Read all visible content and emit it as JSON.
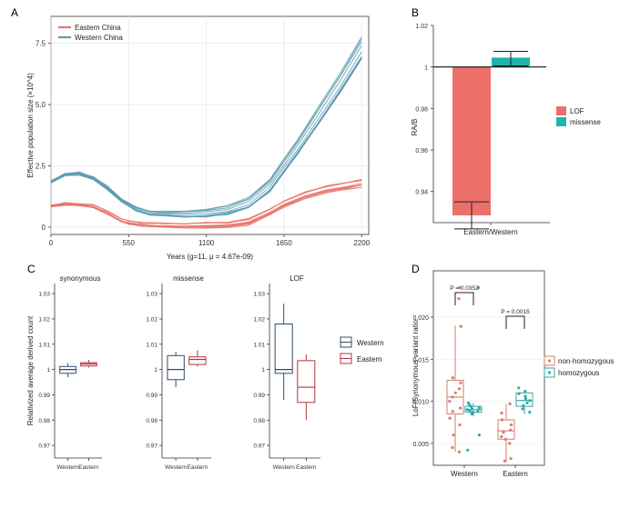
{
  "colors": {
    "eastern": "#e8766b",
    "western": "#5d9bb0",
    "lof": "#ec6f6a",
    "missense": "#1fb3ad",
    "west_box": "#2f4d6b",
    "east_box": "#b5343c",
    "hom": "#33aaa8",
    "nonhom": "#d57d6e"
  },
  "chart_data": [
    {
      "panel": "A",
      "type": "line",
      "title": "",
      "xlabel": "Years (g=11, μ = 4.67e-09)",
      "ylabel": "Effective population size (×10^4)",
      "xlim": [
        0,
        2250
      ],
      "ylim": [
        -0.3,
        8.6
      ],
      "xticks": [
        "0",
        "550",
        "1100",
        "1650",
        "2200"
      ],
      "yticks": [
        "0",
        "2.5",
        "5.0",
        "7.5"
      ],
      "legend": {
        "position": "top-left",
        "entries": [
          "Eastern China",
          "Western China"
        ]
      },
      "grid": true,
      "series": [
        {
          "name": "Eastern China",
          "replicates": 10,
          "x": [
            0,
            100,
            200,
            300,
            400,
            500,
            550,
            650,
            800,
            950,
            1100,
            1250,
            1400,
            1550,
            1650,
            1800,
            1950,
            2100,
            2200
          ],
          "y": [
            0.85,
            0.95,
            0.92,
            0.85,
            0.6,
            0.28,
            0.2,
            0.1,
            0.08,
            0.08,
            0.08,
            0.1,
            0.22,
            0.62,
            0.95,
            1.3,
            1.55,
            1.7,
            1.8
          ]
        },
        {
          "name": "Western China",
          "replicates": 10,
          "x": [
            0,
            100,
            200,
            300,
            400,
            500,
            600,
            700,
            800,
            950,
            1100,
            1250,
            1400,
            1550,
            1650,
            1750,
            1900,
            2050,
            2200
          ],
          "y": [
            1.85,
            2.15,
            2.2,
            2.0,
            1.6,
            1.1,
            0.75,
            0.58,
            0.55,
            0.55,
            0.58,
            0.7,
            1.0,
            1.7,
            2.5,
            3.3,
            4.6,
            5.9,
            7.3
          ]
        }
      ]
    },
    {
      "panel": "B",
      "type": "bar",
      "xlabel": "Eastern/Western",
      "ylabel": "RA/B",
      "ylim": [
        0.925,
        1.02
      ],
      "baseline": 1,
      "yticks": [
        "0.94",
        "0.96",
        "0.98",
        "1",
        "1.02"
      ],
      "legend": {
        "position": "right",
        "entries": [
          "LOF",
          "missense"
        ]
      },
      "bars": [
        {
          "name": "LOF",
          "value": 0.9285,
          "err_low": 0.922,
          "err_high": 0.935
        },
        {
          "name": "missense",
          "value": 1.0045,
          "err_low": 1.0005,
          "err_high": 1.0075
        }
      ]
    },
    {
      "panel": "C",
      "type": "box",
      "ylabel": "Relativized average derived count",
      "ylim": [
        0.965,
        1.034
      ],
      "yticks": [
        "0.97",
        "0.98",
        "0.99",
        "1",
        "1.01",
        "1.02",
        "1.03"
      ],
      "categories": [
        "Western",
        "Eastern"
      ],
      "legend": {
        "position": "right",
        "entries": [
          "Western",
          "Eastern"
        ]
      },
      "facets": [
        {
          "title": "synonymous",
          "Western": {
            "min": 0.997,
            "q1": 0.9985,
            "median": 1.0,
            "q3": 1.0012,
            "max": 1.0025
          },
          "Eastern": {
            "min": 1.0008,
            "q1": 1.0014,
            "median": 1.0022,
            "q3": 1.0027,
            "max": 1.0038
          }
        },
        {
          "title": "missense",
          "Western": {
            "min": 0.993,
            "q1": 0.996,
            "median": 1.0,
            "q3": 1.0055,
            "max": 1.007
          },
          "Eastern": {
            "min": 1.0012,
            "q1": 1.002,
            "median": 1.004,
            "q3": 1.005,
            "max": 1.0075
          }
        },
        {
          "title": "LOF",
          "Western": {
            "min": 0.988,
            "q1": 0.9985,
            "median": 1.0,
            "q3": 1.018,
            "max": 1.026
          },
          "Eastern": {
            "min": 0.98,
            "q1": 0.987,
            "median": 0.993,
            "q3": 1.0035,
            "max": 1.006
          }
        }
      ]
    },
    {
      "panel": "D",
      "type": "box",
      "ylabel": "LoF/Synonymous variant ratio",
      "ylim": [
        0.0024,
        0.0255
      ],
      "yticks": [
        "0.005",
        "0.010",
        "0.015",
        "0.020"
      ],
      "categories": [
        "Western",
        "Eastern"
      ],
      "legend": {
        "position": "right",
        "entries": [
          "non-homozygous",
          "homozygous"
        ]
      },
      "annotations": [
        "P = 0.0352",
        "P = 0.0015"
      ],
      "groups": [
        {
          "category": "Western",
          "non-homozygous": {
            "min": 0.004,
            "q1": 0.0085,
            "median": 0.0105,
            "q3": 0.0125,
            "max": 0.019,
            "points": [
              0.0235,
              0.0222,
              0.0189,
              0.0128,
              0.0122,
              0.0115,
              0.011,
              0.0105,
              0.01,
              0.0092,
              0.0088,
              0.008,
              0.0072,
              0.006,
              0.0045,
              0.004
            ]
          },
          "homozygous": {
            "min": 0.0082,
            "q1": 0.0087,
            "median": 0.009,
            "q3": 0.0094,
            "max": 0.0098,
            "points": [
              0.0235,
              0.0098,
              0.0096,
              0.0094,
              0.0092,
              0.0091,
              0.009,
              0.0089,
              0.0088,
              0.0087,
              0.0085,
              0.006,
              0.0042
            ]
          }
        },
        {
          "category": "Eastern",
          "non-homozygous": {
            "min": 0.0028,
            "q1": 0.0055,
            "median": 0.0065,
            "q3": 0.0078,
            "max": 0.0097,
            "points": [
              0.0097,
              0.0086,
              0.0078,
              0.0072,
              0.0066,
              0.0063,
              0.0058,
              0.0055,
              0.005,
              0.0032,
              0.0029
            ]
          },
          "homozygous": {
            "min": 0.0085,
            "q1": 0.0094,
            "median": 0.0101,
            "q3": 0.011,
            "max": 0.0113,
            "points": [
              0.0116,
              0.0112,
              0.0109,
              0.0106,
              0.0103,
              0.0101,
              0.0098,
              0.0095,
              0.0091,
              0.0087
            ]
          }
        }
      ]
    }
  ],
  "panel_labels": {
    "a": "A",
    "b": "B",
    "c": "C",
    "d": "D"
  }
}
